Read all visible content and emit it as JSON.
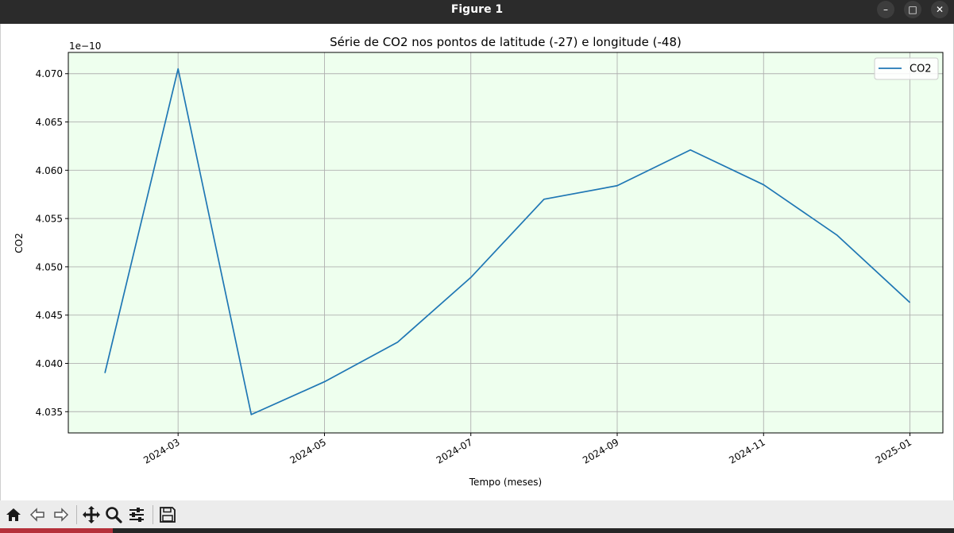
{
  "window": {
    "title": "Figure 1",
    "minimize_glyph": "–",
    "maximize_glyph": "□",
    "close_glyph": "✕"
  },
  "toolbar": {
    "buttons": [
      "home-icon",
      "back-arrow-icon",
      "forward-arrow-icon",
      "pan-icon",
      "zoom-icon",
      "configure-subplots-icon",
      "save-icon"
    ]
  },
  "chart_data": {
    "type": "line",
    "title": "Série de CO2 nos pontos de latitude (-27) e longitude (-48)",
    "xlabel": "Tempo (meses)",
    "ylabel": "CO2",
    "y_offset_label": "1e−10",
    "x": [
      "2024-02",
      "2024-03",
      "2024-04",
      "2024-05",
      "2024-06",
      "2024-07",
      "2024-08",
      "2024-09",
      "2024-10",
      "2024-11",
      "2024-12",
      "2025-01"
    ],
    "series": [
      {
        "name": "CO2",
        "color": "#1f77b4",
        "values": [
          4.039,
          4.0705,
          4.0347,
          4.0381,
          4.0422,
          4.0489,
          4.057,
          4.0584,
          4.0621,
          4.0585,
          4.0533,
          4.0463
        ]
      }
    ],
    "xticks": [
      "2024-03",
      "2024-05",
      "2024-07",
      "2024-09",
      "2024-11",
      "2025-01"
    ],
    "yticks": [
      "4.035",
      "4.040",
      "4.045",
      "4.050",
      "4.055",
      "4.060",
      "4.065",
      "4.070"
    ],
    "ylim": [
      4.0328,
      4.0722
    ],
    "grid": true,
    "legend_position": "upper right",
    "plot_background": "#eeffee",
    "grid_color": "#b0b0b0"
  }
}
